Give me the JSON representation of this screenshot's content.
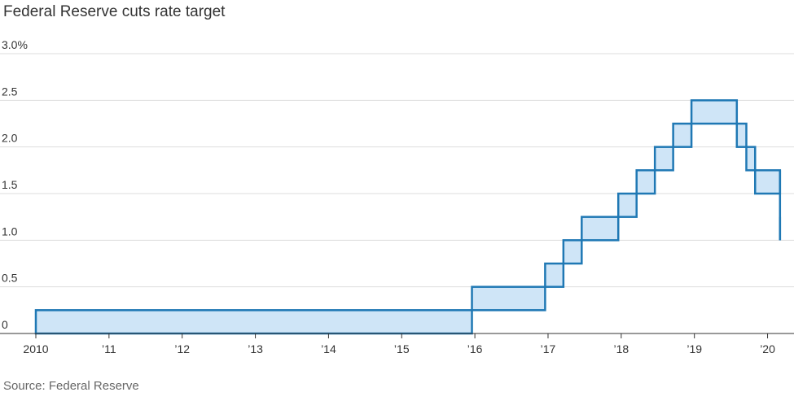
{
  "title": "Federal Reserve cuts rate target",
  "source": "Source: Federal Reserve",
  "colors": {
    "line": "#1f78b4",
    "fill": "#cfe5f7",
    "grid": "#dddddd",
    "axis": "#333333"
  },
  "chart_data": {
    "type": "area",
    "title": "Federal Reserve cuts rate target",
    "xlabel": "",
    "ylabel": "",
    "xlim": [
      2010.0,
      2020.25
    ],
    "ylim": [
      0,
      3.0
    ],
    "grid": true,
    "legend": "none",
    "x_ticks": [
      {
        "value": 2010,
        "label": "2010"
      },
      {
        "value": 2011,
        "label": "’11"
      },
      {
        "value": 2012,
        "label": "’12"
      },
      {
        "value": 2013,
        "label": "’13"
      },
      {
        "value": 2014,
        "label": "’14"
      },
      {
        "value": 2015,
        "label": "’15"
      },
      {
        "value": 2016,
        "label": "’16"
      },
      {
        "value": 2017,
        "label": "’17"
      },
      {
        "value": 2018,
        "label": "’18"
      },
      {
        "value": 2019,
        "label": "’19"
      },
      {
        "value": 2020,
        "label": "’20"
      }
    ],
    "y_ticks": [
      {
        "value": 0,
        "label": "0"
      },
      {
        "value": 0.5,
        "label": "0.5"
      },
      {
        "value": 1.0,
        "label": "1.0"
      },
      {
        "value": 1.5,
        "label": "1.5"
      },
      {
        "value": 2.0,
        "label": "2.0"
      },
      {
        "value": 2.5,
        "label": "2.5"
      },
      {
        "value": 3.0,
        "label": "3.0%"
      }
    ],
    "series": [
      {
        "name": "",
        "description": "target range steps",
        "steps": [
          {
            "start": 2010.0,
            "end": 2015.96,
            "lower": 0.0,
            "upper": 0.25
          },
          {
            "start": 2015.96,
            "end": 2016.96,
            "lower": 0.25,
            "upper": 0.5
          },
          {
            "start": 2016.96,
            "end": 2017.21,
            "lower": 0.5,
            "upper": 0.75
          },
          {
            "start": 2017.21,
            "end": 2017.46,
            "lower": 0.75,
            "upper": 1.0
          },
          {
            "start": 2017.46,
            "end": 2017.96,
            "lower": 1.0,
            "upper": 1.25
          },
          {
            "start": 2017.96,
            "end": 2018.21,
            "lower": 1.25,
            "upper": 1.5
          },
          {
            "start": 2018.21,
            "end": 2018.46,
            "lower": 1.5,
            "upper": 1.75
          },
          {
            "start": 2018.46,
            "end": 2018.71,
            "lower": 1.75,
            "upper": 2.0
          },
          {
            "start": 2018.71,
            "end": 2018.96,
            "lower": 2.0,
            "upper": 2.25
          },
          {
            "start": 2018.96,
            "end": 2019.58,
            "lower": 2.25,
            "upper": 2.5
          },
          {
            "start": 2019.58,
            "end": 2019.71,
            "lower": 2.0,
            "upper": 2.25
          },
          {
            "start": 2019.71,
            "end": 2019.83,
            "lower": 1.75,
            "upper": 2.0
          },
          {
            "start": 2019.83,
            "end": 2020.17,
            "lower": 1.5,
            "upper": 1.75
          },
          {
            "start": 2020.17,
            "end": 2020.17,
            "lower": 1.0,
            "upper": 1.25
          }
        ]
      }
    ]
  }
}
